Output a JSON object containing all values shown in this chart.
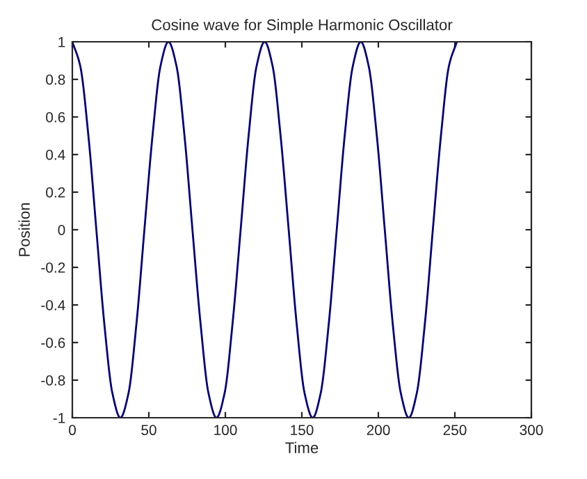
{
  "chart_data": {
    "type": "line",
    "title": "Cosine wave for Simple Harmonic Oscillator",
    "xlabel": "Time",
    "ylabel": "Position",
    "x": [
      0,
      5.2,
      10.5,
      15.7,
      20.9,
      26.2,
      31.4,
      36.7,
      41.9,
      47.1,
      52.4,
      57.6,
      62.8,
      68.1,
      73.3,
      78.5,
      83.8,
      89.0,
      94.2,
      99.5,
      104.7,
      110.0,
      115.2,
      120.4,
      125.7,
      130.9,
      136.1,
      141.4,
      146.6,
      151.8,
      157.1,
      162.3,
      167.6,
      172.8,
      178.0,
      183.3,
      188.5,
      193.7,
      199.0,
      204.2,
      209.4,
      214.7,
      219.9,
      225.1,
      230.4,
      235.6,
      240.9,
      246.1,
      251.3
    ],
    "series": [
      {
        "color": "#000080",
        "values": [
          1,
          0.87,
          0.5,
          0,
          -0.5,
          -0.87,
          -1,
          -0.87,
          -0.5,
          0,
          0.5,
          0.87,
          1,
          0.87,
          0.5,
          0,
          -0.5,
          -0.87,
          -1,
          -0.87,
          -0.5,
          0,
          0.5,
          0.87,
          1,
          0.87,
          0.5,
          0,
          -0.5,
          -0.87,
          -1,
          -0.87,
          -0.5,
          0,
          0.5,
          0.87,
          1,
          0.87,
          0.5,
          0,
          -0.5,
          -0.87,
          -1,
          -0.87,
          -0.5,
          0,
          0.5,
          0.87,
          1
        ]
      }
    ],
    "xlim": [
      0,
      300
    ],
    "xticks": [
      0,
      50,
      100,
      150,
      200,
      250,
      300
    ],
    "ylim": [
      -1,
      1
    ],
    "yticks": [
      -1,
      -0.8,
      -0.6,
      -0.4,
      -0.2,
      0,
      0.2,
      0.4,
      0.6,
      0.8,
      1
    ],
    "grid": false,
    "legend": false,
    "marker": "none",
    "line_style": "solid"
  }
}
